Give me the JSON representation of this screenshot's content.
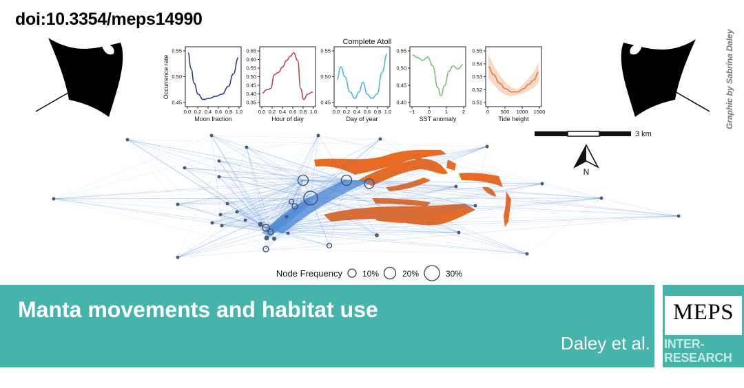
{
  "doi": "doi:10.3354/meps14990",
  "credit": "Graphic by Sabrina Daley",
  "figure": {
    "panel_title": "Complete Atoll",
    "ylabel": "Occurrence rate",
    "panels": [
      {
        "xlabel": "Moon fraction",
        "xticks": [
          "0.0",
          "0.2",
          "0.4",
          "0.6",
          "0.8",
          "1.0"
        ],
        "yticks": [
          "0.55",
          "0.50",
          "0.45"
        ],
        "color": "#2b3b8c"
      },
      {
        "xlabel": "Hour of day",
        "xticks": [
          "0.0",
          "0.2",
          "0.4",
          "0.6",
          "0.8",
          "1.0"
        ],
        "yticks": [
          "0.65",
          "0.60",
          "0.55",
          "0.50",
          "0.45",
          "0.40",
          "0.35"
        ],
        "color": "#b5474f"
      },
      {
        "xlabel": "Day of year",
        "xticks": [
          "0.0",
          "0.2",
          "0.4",
          "0.6",
          "0.8",
          "1.0"
        ],
        "yticks": [
          "0.55",
          "0.50",
          "0.45"
        ],
        "color": "#4fb3dd"
      },
      {
        "xlabel": "SST anomaly",
        "xticks": [
          "−1",
          "0",
          "1",
          "2"
        ],
        "yticks": [
          "0.55",
          "0.50",
          "0.45",
          "0.40"
        ],
        "color": "#7cc17e"
      },
      {
        "xlabel": "Tide height",
        "xticks": [
          "0",
          "500",
          "1000",
          "1500"
        ],
        "yticks": [
          "0.55",
          "0.54",
          "0.53",
          "0.52",
          "0.51"
        ],
        "color": "#e07b45"
      }
    ],
    "scale_label": "3 km",
    "north_label": "N",
    "legend": {
      "title": "Node Frequency",
      "items": [
        "10%",
        "20%",
        "30%"
      ]
    },
    "colors": {
      "network": "#4a86d4",
      "island": "#ec6a1f"
    }
  },
  "banner": {
    "title": "Manta movements and habitat use",
    "authors": "Daley et al."
  },
  "journal": {
    "name": "MEPS",
    "publisher_line1": "INTER-",
    "publisher_line2": "RESEARCH"
  }
}
